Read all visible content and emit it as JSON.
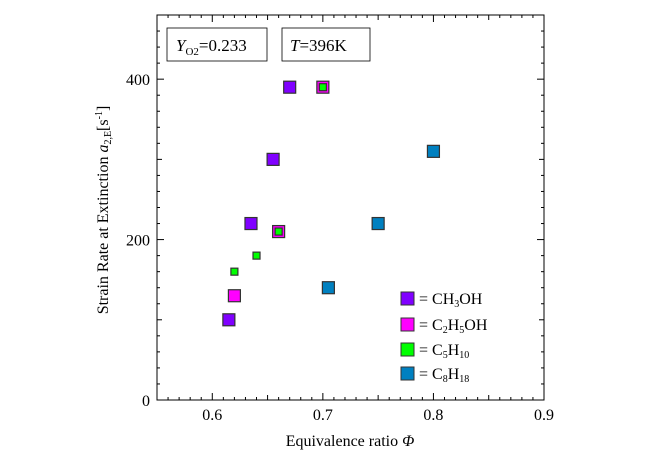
{
  "chart_data": {
    "type": "scatter",
    "title": "",
    "xlabel": "Equivalence ratio Φ",
    "ylabel": "Strain Rate at Extinction a2,E[s-1]",
    "ylabel_parts": {
      "main": "Strain Rate at Extinction ",
      "var": "a",
      "sub": "2,E",
      "unit_open": "[s",
      "sup": "-1",
      "unit_close": "]"
    },
    "xlabel_parts": {
      "main": "Equivalence ratio ",
      "var": "Φ"
    },
    "xlim": [
      0.55,
      0.9
    ],
    "ylim": [
      0,
      480
    ],
    "xticks": [
      0.6,
      0.7,
      0.8,
      0.9
    ],
    "xtick_labels": [
      "0.6",
      "0.7",
      "0.8",
      "0.9"
    ],
    "yticks": [
      0,
      200,
      400
    ],
    "ytick_labels": [
      "0",
      "200",
      "400"
    ],
    "grid": false,
    "annotations": [
      {
        "var": "Y",
        "sub": "O2",
        "text": "=0.233"
      },
      {
        "var": "T",
        "sub": "",
        "text": "=396K"
      }
    ],
    "legend_position": "bottom-right",
    "series": [
      {
        "name": "CH3OH",
        "label_parts": [
          "= CH",
          "3",
          "OH"
        ],
        "color": "#8000ff",
        "size": "large",
        "x": [
          0.615,
          0.635,
          0.655,
          0.67
        ],
        "y": [
          100,
          220,
          300,
          390
        ]
      },
      {
        "name": "C2H5OH",
        "label_parts": [
          "= C",
          "2",
          "H",
          "5",
          "OH"
        ],
        "color": "#ff00ff",
        "size": "large",
        "x": [
          0.62,
          0.66,
          0.7
        ],
        "y": [
          130,
          210,
          390
        ]
      },
      {
        "name": "C5H10",
        "label_parts": [
          "= C",
          "5",
          "H",
          "10"
        ],
        "color": "#00ff00",
        "size": "small",
        "x": [
          0.62,
          0.64,
          0.66,
          0.7
        ],
        "y": [
          160,
          180,
          210,
          390
        ]
      },
      {
        "name": "C8H18",
        "label_parts": [
          "= C",
          "8",
          "H",
          "18"
        ],
        "color": "#0080c0",
        "size": "large",
        "x": [
          0.705,
          0.75,
          0.8
        ],
        "y": [
          140,
          220,
          310
        ]
      }
    ]
  }
}
